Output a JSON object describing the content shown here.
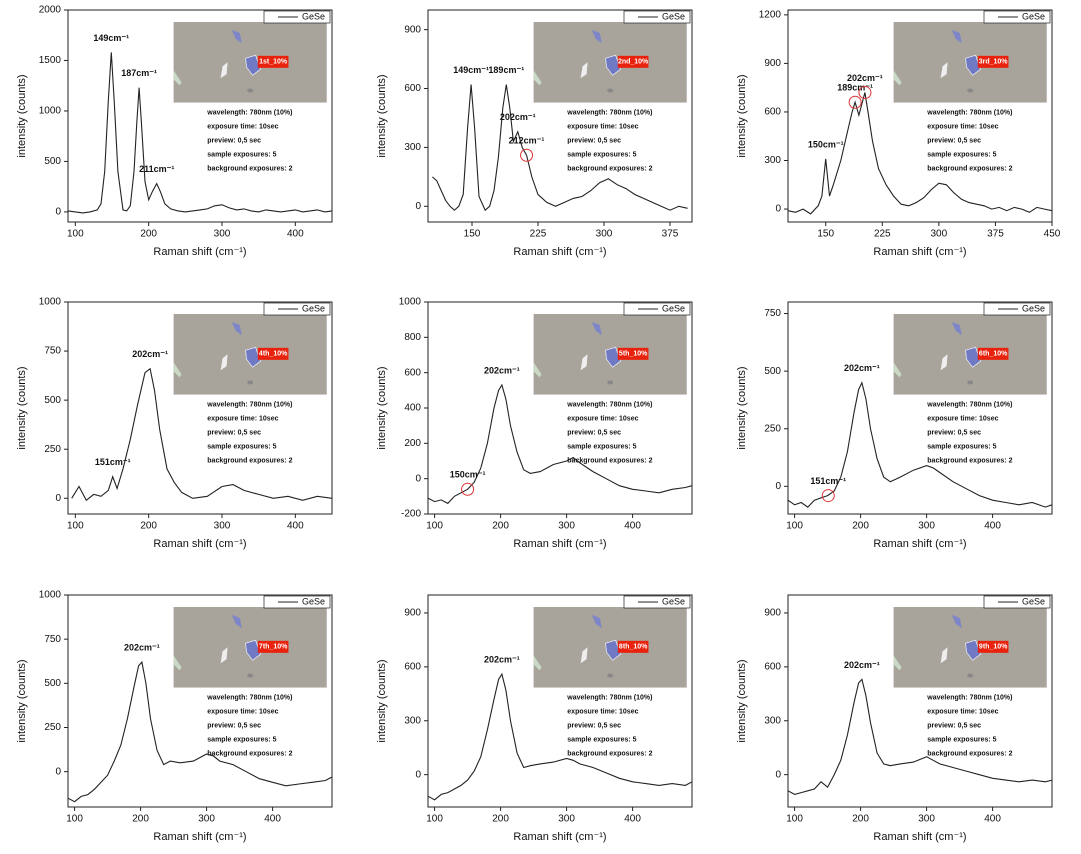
{
  "chart_data": [
    {
      "type": "line",
      "xlabel": "Raman shift (cm⁻¹)",
      "ylabel": "intensity (counts)",
      "legend": "upper right",
      "x": [
        90,
        100,
        110,
        120,
        130,
        135,
        140,
        145,
        149,
        153,
        158,
        165,
        170,
        175,
        180,
        184,
        187,
        190,
        195,
        200,
        205,
        211,
        216,
        222,
        230,
        240,
        250,
        260,
        270,
        280,
        290,
        300,
        310,
        320,
        330,
        340,
        350,
        360,
        370,
        380,
        390,
        400,
        410,
        420,
        430,
        440,
        450
      ],
      "series": [
        {
          "name": "GeSe",
          "color": "#222222",
          "values": [
            10,
            0,
            -10,
            0,
            20,
            80,
            400,
            1100,
            1580,
            1100,
            400,
            20,
            10,
            60,
            400,
            900,
            1230,
            900,
            300,
            120,
            200,
            280,
            200,
            80,
            30,
            10,
            0,
            10,
            20,
            30,
            60,
            70,
            40,
            20,
            30,
            10,
            0,
            20,
            10,
            0,
            10,
            20,
            0,
            10,
            20,
            0,
            10
          ]
        }
      ],
      "xlim": [
        90,
        450
      ],
      "xticks": [
        100,
        200,
        300,
        400
      ],
      "ylim": [
        -100,
        2000
      ],
      "yticks": [
        0,
        500,
        1000,
        1500,
        2000
      ],
      "annotations": [
        {
          "text": "149cm⁻¹",
          "x": 149,
          "y": 1580
        },
        {
          "text": "187cm⁻¹",
          "x": 187,
          "y": 1230
        },
        {
          "text": "211cm⁻¹",
          "x": 211,
          "y": 280
        }
      ],
      "inset_label": "1st_10%",
      "notes": [
        "wavelength: 780nm (10%)",
        "exposure time: 10sec",
        "preview: 0,5 sec",
        "sample exposures: 5",
        "background exposures: 2"
      ]
    },
    {
      "type": "line",
      "xlabel": "Raman shift (cm⁻¹)",
      "ylabel": "intensity (counts)",
      "legend": "upper right",
      "x": [
        105,
        110,
        115,
        120,
        125,
        130,
        135,
        140,
        145,
        149,
        153,
        158,
        165,
        170,
        175,
        180,
        185,
        189,
        193,
        197,
        202,
        207,
        212,
        218,
        225,
        235,
        245,
        255,
        265,
        275,
        285,
        295,
        305,
        315,
        325,
        335,
        345,
        355,
        365,
        375,
        385,
        395
      ],
      "series": [
        {
          "name": "GeSe",
          "color": "#222222",
          "values": [
            150,
            130,
            80,
            30,
            0,
            -20,
            0,
            60,
            400,
            620,
            400,
            50,
            -20,
            0,
            80,
            250,
            500,
            620,
            500,
            330,
            380,
            300,
            260,
            150,
            60,
            20,
            0,
            20,
            40,
            50,
            80,
            120,
            140,
            110,
            90,
            60,
            40,
            20,
            0,
            -20,
            0,
            -10
          ]
        }
      ],
      "xlim": [
        100,
        400
      ],
      "xticks": [
        150,
        225,
        300,
        375
      ],
      "ylim": [
        -80,
        1000
      ],
      "yticks": [
        0,
        300,
        600,
        900
      ],
      "annotations": [
        {
          "text": "149cm⁻¹",
          "x": 149,
          "y": 620
        },
        {
          "text": "189cm⁻¹",
          "x": 189,
          "y": 620
        },
        {
          "text": "202cm⁻¹",
          "x": 202,
          "y": 380
        },
        {
          "text": "212cm⁻¹",
          "x": 212,
          "y": 260,
          "circled": true
        }
      ],
      "inset_label": "2nd_10%",
      "notes": [
        "wavelength: 780nm (10%)",
        "exposure time: 10sec",
        "preview: 0,5 sec",
        "sample exposures: 5",
        "background exposures: 2"
      ]
    },
    {
      "type": "line",
      "xlabel": "Raman shift (cm⁻¹)",
      "ylabel": "intensity (counts)",
      "legend": "upper right",
      "x": [
        100,
        110,
        120,
        130,
        140,
        145,
        150,
        155,
        160,
        170,
        180,
        185,
        189,
        194,
        198,
        202,
        206,
        212,
        220,
        230,
        240,
        250,
        260,
        270,
        280,
        290,
        300,
        310,
        320,
        330,
        340,
        350,
        360,
        370,
        380,
        390,
        400,
        410,
        420,
        430,
        440,
        450
      ],
      "series": [
        {
          "name": "GeSe",
          "color": "#222222",
          "values": [
            -10,
            -20,
            0,
            -30,
            20,
            80,
            310,
            80,
            150,
            300,
            500,
            600,
            660,
            580,
            650,
            720,
            600,
            420,
            250,
            150,
            80,
            30,
            20,
            40,
            70,
            120,
            160,
            150,
            100,
            60,
            40,
            30,
            20,
            0,
            10,
            -10,
            10,
            0,
            -20,
            10,
            0,
            -10
          ]
        }
      ],
      "xlim": [
        100,
        450
      ],
      "xticks": [
        150,
        225,
        300,
        375,
        450
      ],
      "ylim": [
        -80,
        1230
      ],
      "yticks": [
        0,
        300,
        600,
        900,
        1200
      ],
      "annotations": [
        {
          "text": "150cm⁻¹",
          "x": 150,
          "y": 310
        },
        {
          "text": "189cm⁻¹",
          "x": 189,
          "y": 660,
          "circled": true
        },
        {
          "text": "202cm⁻¹",
          "x": 202,
          "y": 720,
          "circled": true
        }
      ],
      "inset_label": "3rd_10%",
      "notes": [
        "wavelength: 780nm (10%)",
        "exposure time: 10sec",
        "preview: 0,5 sec",
        "sample exposures: 5",
        "background exposures: 2"
      ]
    },
    {
      "type": "line",
      "xlabel": "Raman shift (cm⁻¹)",
      "ylabel": "intensity (counts)",
      "legend": "upper right",
      "x": [
        95,
        105,
        115,
        125,
        135,
        145,
        151,
        157,
        165,
        175,
        185,
        195,
        202,
        208,
        215,
        225,
        235,
        245,
        260,
        280,
        300,
        315,
        330,
        350,
        370,
        390,
        410,
        430,
        450
      ],
      "series": [
        {
          "name": "GeSe",
          "color": "#222222",
          "values": [
            0,
            60,
            -10,
            20,
            10,
            40,
            110,
            50,
            150,
            300,
            480,
            640,
            660,
            550,
            350,
            150,
            80,
            30,
            0,
            10,
            60,
            70,
            40,
            20,
            0,
            10,
            -10,
            10,
            0
          ]
        }
      ],
      "xlim": [
        90,
        450
      ],
      "xticks": [
        100,
        200,
        300,
        400
      ],
      "ylim": [
        -80,
        1000
      ],
      "yticks": [
        0,
        250,
        500,
        750,
        1000
      ],
      "annotations": [
        {
          "text": "151cm⁻¹",
          "x": 151,
          "y": 110
        },
        {
          "text": "202cm⁻¹",
          "x": 202,
          "y": 660
        }
      ],
      "inset_label": "4th_10%",
      "notes": [
        "wavelength: 780nm (10%)",
        "exposure time: 10sec",
        "preview: 0,5 sec",
        "sample exposures: 5",
        "background exposures: 2"
      ]
    },
    {
      "type": "line",
      "xlabel": "Raman shift (cm⁻¹)",
      "ylabel": "intensity (counts)",
      "legend": "upper right",
      "x": [
        90,
        100,
        110,
        120,
        130,
        140,
        150,
        160,
        170,
        180,
        190,
        197,
        202,
        208,
        215,
        225,
        235,
        245,
        260,
        280,
        300,
        310,
        320,
        340,
        360,
        380,
        400,
        420,
        440,
        460,
        480,
        490
      ],
      "series": [
        {
          "name": "GeSe",
          "color": "#222222",
          "values": [
            -110,
            -130,
            -120,
            -140,
            -100,
            -80,
            -60,
            -20,
            60,
            200,
            400,
            500,
            530,
            450,
            300,
            150,
            50,
            30,
            40,
            80,
            100,
            120,
            90,
            40,
            0,
            -40,
            -60,
            -70,
            -80,
            -60,
            -50,
            -40
          ]
        }
      ],
      "xlim": [
        90,
        490
      ],
      "xticks": [
        100,
        200,
        300,
        400
      ],
      "ylim": [
        -200,
        1000
      ],
      "yticks": [
        -200,
        0,
        200,
        400,
        600,
        800,
        1000
      ],
      "annotations": [
        {
          "text": "150cm⁻¹",
          "x": 150,
          "y": -60,
          "circled": true
        },
        {
          "text": "202cm⁻¹",
          "x": 202,
          "y": 530
        }
      ],
      "inset_label": "5th_10%",
      "notes": [
        "wavelength: 780nm (10%)",
        "exposure time: 10sec",
        "preview: 0,5 sec",
        "sample exposures: 5",
        "background exposures: 2"
      ]
    },
    {
      "type": "line",
      "xlabel": "Raman shift (cm⁻¹)",
      "ylabel": "intensity (counts)",
      "legend": "upper right",
      "x": [
        90,
        100,
        110,
        120,
        130,
        140,
        150,
        160,
        170,
        180,
        190,
        197,
        202,
        208,
        215,
        225,
        235,
        245,
        260,
        280,
        300,
        310,
        320,
        340,
        360,
        380,
        400,
        420,
        440,
        460,
        480,
        490
      ],
      "series": [
        {
          "name": "GeSe",
          "color": "#222222",
          "values": [
            -60,
            -80,
            -70,
            -90,
            -60,
            -50,
            -40,
            -20,
            40,
            150,
            320,
            420,
            450,
            380,
            250,
            120,
            40,
            20,
            40,
            70,
            90,
            80,
            60,
            20,
            -10,
            -40,
            -60,
            -70,
            -80,
            -70,
            -90,
            -80
          ]
        }
      ],
      "xlim": [
        90,
        490
      ],
      "xticks": [
        100,
        200,
        300,
        400
      ],
      "ylim": [
        -120,
        800
      ],
      "yticks": [
        0,
        250,
        500,
        750
      ],
      "annotations": [
        {
          "text": "151cm⁻¹",
          "x": 151,
          "y": -40,
          "circled": true
        },
        {
          "text": "202cm⁻¹",
          "x": 202,
          "y": 450
        }
      ],
      "inset_label": "6th_10%",
      "notes": [
        "wavelength: 780nm (10%)",
        "exposure time: 10sec",
        "preview: 0,5 sec",
        "sample exposures: 5",
        "background exposures: 2"
      ]
    },
    {
      "type": "line",
      "xlabel": "Raman shift (cm⁻¹)",
      "ylabel": "intensity (counts)",
      "legend": "upper right",
      "x": [
        90,
        100,
        110,
        120,
        130,
        140,
        150,
        160,
        170,
        180,
        190,
        197,
        202,
        208,
        215,
        225,
        235,
        245,
        260,
        280,
        300,
        310,
        320,
        340,
        360,
        380,
        400,
        420,
        440,
        460,
        480,
        490
      ],
      "series": [
        {
          "name": "GeSe",
          "color": "#222222",
          "values": [
            -150,
            -170,
            -140,
            -130,
            -100,
            -60,
            -20,
            60,
            150,
            300,
            480,
            600,
            620,
            500,
            300,
            120,
            40,
            60,
            50,
            60,
            100,
            90,
            60,
            40,
            0,
            -40,
            -60,
            -80,
            -70,
            -60,
            -50,
            -30
          ]
        }
      ],
      "xlim": [
        90,
        490
      ],
      "xticks": [
        100,
        200,
        300,
        400
      ],
      "ylim": [
        -200,
        1000
      ],
      "yticks": [
        0,
        250,
        500,
        750,
        1000
      ],
      "annotations": [
        {
          "text": "202cm⁻¹",
          "x": 202,
          "y": 620
        }
      ],
      "inset_label": "7th_10%",
      "notes": [
        "wavelength: 780nm (10%)",
        "exposure time: 10sec",
        "preview: 0,5 sec",
        "sample exposures: 5",
        "background exposures: 2"
      ]
    },
    {
      "type": "line",
      "xlabel": "Raman shift (cm⁻¹)",
      "ylabel": "intensity (counts)",
      "legend": "upper right",
      "x": [
        90,
        100,
        110,
        120,
        130,
        140,
        150,
        160,
        170,
        180,
        190,
        197,
        202,
        208,
        215,
        225,
        235,
        245,
        260,
        280,
        300,
        310,
        320,
        340,
        360,
        380,
        400,
        420,
        440,
        460,
        480,
        490
      ],
      "series": [
        {
          "name": "GeSe",
          "color": "#222222",
          "values": [
            -120,
            -140,
            -110,
            -100,
            -80,
            -60,
            -30,
            20,
            100,
            250,
            420,
            530,
            560,
            470,
            300,
            120,
            40,
            50,
            60,
            70,
            90,
            80,
            60,
            40,
            10,
            -20,
            -40,
            -50,
            -60,
            -50,
            -60,
            -40
          ]
        }
      ],
      "xlim": [
        90,
        490
      ],
      "xticks": [
        100,
        200,
        300,
        400
      ],
      "ylim": [
        -180,
        1000
      ],
      "yticks": [
        0,
        300,
        600,
        900
      ],
      "annotations": [
        {
          "text": "202cm⁻¹",
          "x": 202,
          "y": 560
        }
      ],
      "inset_label": "8th_10%",
      "notes": [
        "wavelength: 780nm (10%)",
        "exposure time: 10sec",
        "preview: 0,5 sec",
        "sample exposures: 5",
        "background exposures: 2"
      ]
    },
    {
      "type": "line",
      "xlabel": "Raman shift (cm⁻¹)",
      "ylabel": "intensity (counts)",
      "legend": "upper right",
      "x": [
        90,
        100,
        110,
        120,
        130,
        140,
        150,
        160,
        170,
        180,
        190,
        197,
        202,
        208,
        215,
        225,
        235,
        245,
        260,
        280,
        300,
        310,
        320,
        340,
        360,
        380,
        400,
        420,
        440,
        460,
        480,
        490
      ],
      "series": [
        {
          "name": "GeSe",
          "color": "#222222",
          "values": [
            -90,
            -110,
            -100,
            -90,
            -80,
            -40,
            -70,
            0,
            80,
            220,
            400,
            510,
            530,
            440,
            290,
            120,
            60,
            50,
            60,
            70,
            100,
            80,
            60,
            40,
            20,
            0,
            -20,
            -30,
            -40,
            -30,
            -40,
            -30
          ]
        }
      ],
      "xlim": [
        90,
        490
      ],
      "xticks": [
        100,
        200,
        300,
        400
      ],
      "ylim": [
        -180,
        1000
      ],
      "yticks": [
        0,
        300,
        600,
        900
      ],
      "annotations": [
        {
          "text": "202cm⁻¹",
          "x": 202,
          "y": 530
        }
      ],
      "inset_label": "9th_10%",
      "notes": [
        "wavelength: 780nm (10%)",
        "exposure time: 10sec",
        "preview: 0,5 sec",
        "sample exposures: 5",
        "background exposures: 2"
      ]
    }
  ]
}
